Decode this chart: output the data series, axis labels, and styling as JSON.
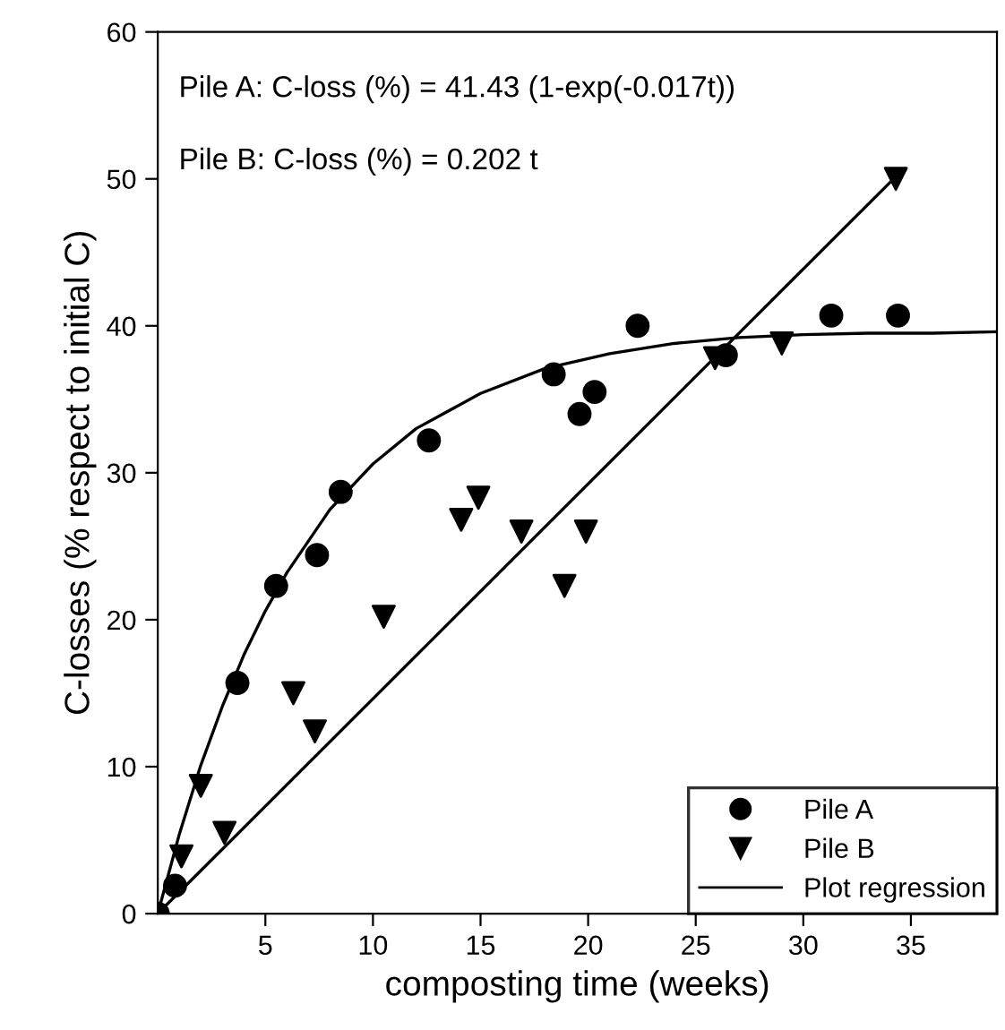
{
  "chart_data": {
    "type": "scatter",
    "xlabel": "composting time (weeks)",
    "ylabel": "C-losses (% respect to initial C)",
    "annotations": [
      "Pile A: C-loss (%) = 41.43 (1-exp(-0.017t))",
      "Pile B: C-loss (%) = 0.202 t"
    ],
    "xlim": [
      0,
      39
    ],
    "xticks": [
      5,
      10,
      15,
      20,
      25,
      30,
      35
    ],
    "ylim": [
      0,
      60
    ],
    "yticks": [
      0,
      10,
      20,
      30,
      40,
      50,
      60
    ],
    "grid": false,
    "legend": "bottom right",
    "series": [
      {
        "name": "Pile A",
        "marker": "circle",
        "color": "#000000",
        "x": [
          0,
          0.8,
          3.7,
          5.5,
          7.4,
          8.5,
          12.6,
          18.4,
          19.6,
          20.3,
          22.3,
          26.4,
          31.3,
          34.4
        ],
        "values": [
          0,
          1.9,
          15.7,
          22.3,
          24.4,
          28.7,
          32.2,
          36.7,
          34.0,
          35.5,
          40.0,
          38.0,
          40.7,
          40.7
        ]
      },
      {
        "name": "Pile B",
        "marker": "triangle",
        "color": "#000000",
        "x": [
          1.1,
          2.0,
          3.1,
          6.3,
          7.3,
          10.5,
          14.1,
          14.9,
          16.9,
          18.9,
          19.9,
          25.9,
          29.0,
          34.3
        ],
        "values": [
          3.9,
          8.7,
          5.5,
          15.0,
          12.4,
          20.2,
          26.8,
          28.3,
          26.0,
          22.3,
          26.0,
          37.8,
          38.8,
          50.0
        ]
      },
      {
        "name": "Plot regression",
        "type": "line",
        "marker": "none",
        "line_style": "solid",
        "color": "#000000",
        "x": [
          0,
          1,
          2,
          3,
          4,
          5,
          6,
          8,
          10,
          12,
          15,
          18,
          21,
          24,
          27,
          30,
          33,
          36,
          39
        ],
        "values": [
          0,
          5.4,
          10.1,
          14.1,
          17.6,
          20.6,
          23.2,
          27.5,
          30.6,
          33.0,
          35.4,
          37.1,
          38.1,
          38.8,
          39.2,
          39.4,
          39.5,
          39.5,
          39.6
        ]
      },
      {
        "type": "line",
        "marker": "none",
        "line_style": "solid",
        "color": "#000000",
        "x": [
          0,
          34.4
        ],
        "values": [
          0,
          50.3
        ]
      }
    ]
  }
}
